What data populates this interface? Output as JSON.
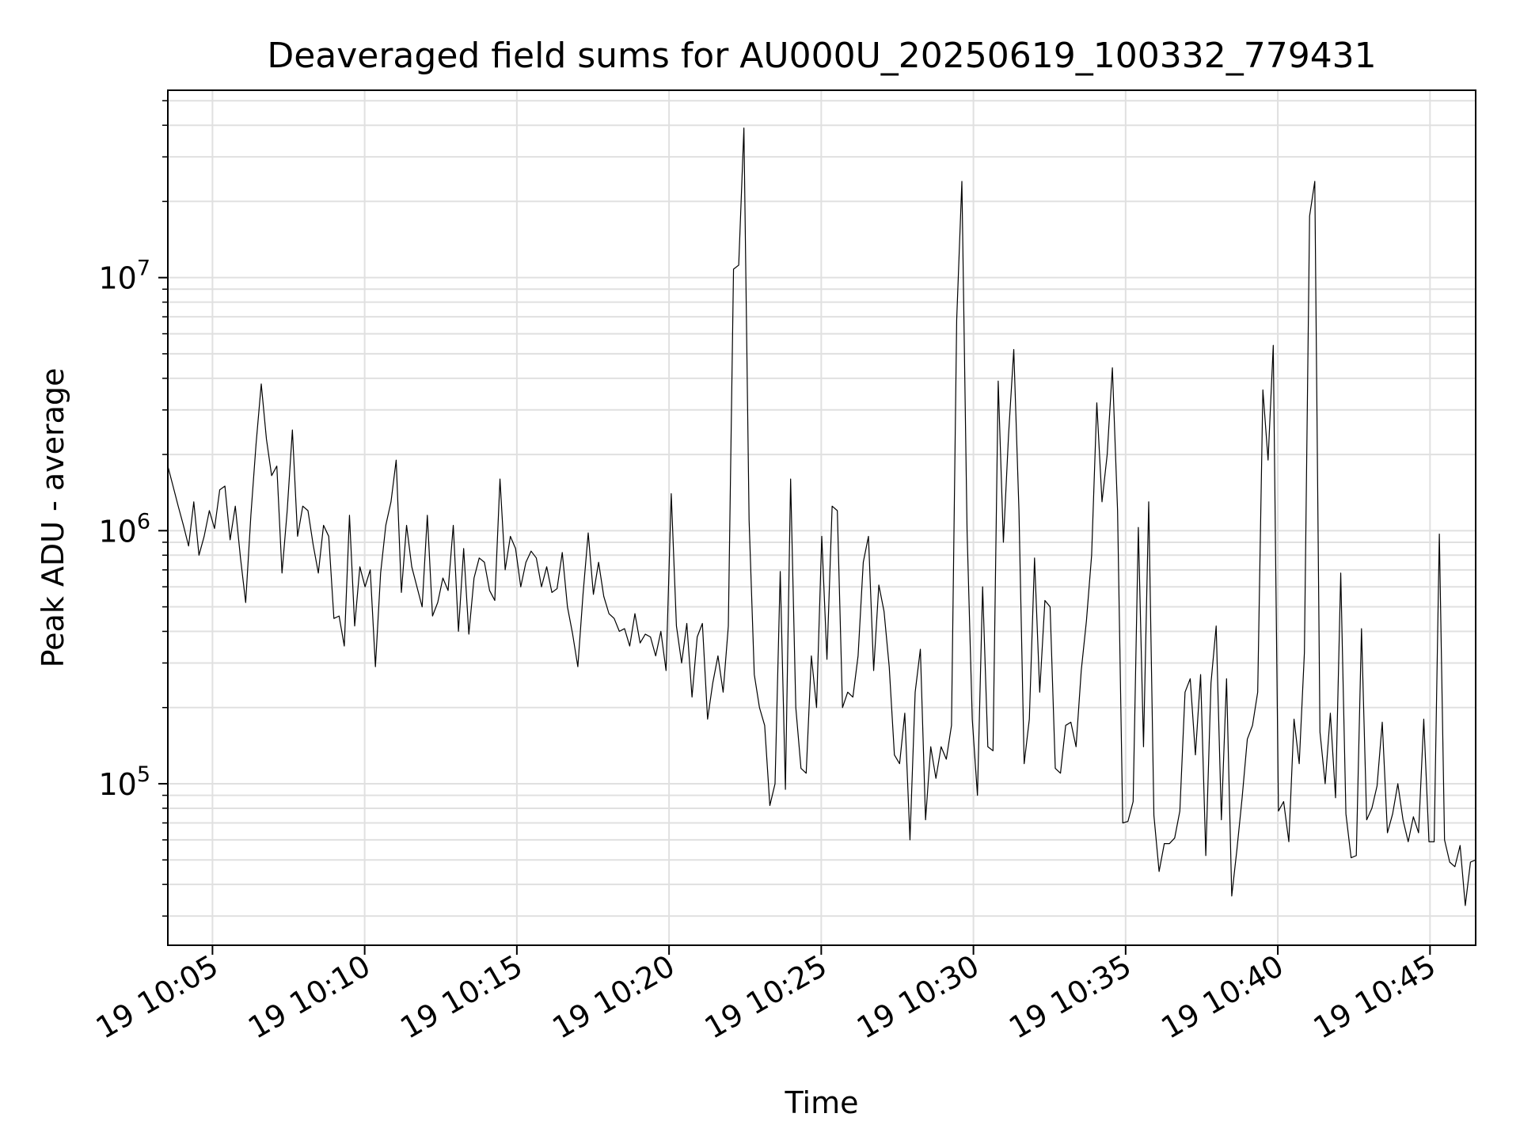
{
  "chart_data": {
    "type": "line",
    "title": "Deaveraged field sums for AU000U_20250619_100332_779431",
    "xlabel": "Time",
    "ylabel": "Peak ADU - average",
    "x_start": "10:03:32",
    "x_end": "10:46:30",
    "xlim": [
      "10:03:32",
      "10:46:30"
    ],
    "ylim": [
      23000,
      55000000
    ],
    "yscale": "log",
    "grid": true,
    "line_color": "#000000",
    "x_ticks": [
      {
        "t": "10:05:00",
        "label": "19 10:05"
      },
      {
        "t": "10:10:00",
        "label": "19 10:10"
      },
      {
        "t": "10:15:00",
        "label": "19 10:15"
      },
      {
        "t": "10:20:00",
        "label": "19 10:20"
      },
      {
        "t": "10:25:00",
        "label": "19 10:25"
      },
      {
        "t": "10:30:00",
        "label": "19 10:30"
      },
      {
        "t": "10:35:00",
        "label": "19 10:35"
      },
      {
        "t": "10:40:00",
        "label": "19 10:40"
      },
      {
        "t": "10:45:00",
        "label": "19 10:45"
      }
    ],
    "y_ticks": [
      {
        "value": 100000,
        "base": "10",
        "exp": "5"
      },
      {
        "value": 1000000,
        "base": "10",
        "exp": "6"
      },
      {
        "value": 10000000,
        "base": "10",
        "exp": "7"
      }
    ],
    "values": [
      1800000,
      1500000,
      1250000,
      1050000,
      870000,
      1300000,
      800000,
      950000,
      1200000,
      1020000,
      1450000,
      1500000,
      920000,
      1250000,
      780000,
      520000,
      1150000,
      2200000,
      3800000,
      2300000,
      1650000,
      1800000,
      680000,
      1200000,
      2500000,
      950000,
      1250000,
      1200000,
      880000,
      680000,
      1050000,
      950000,
      450000,
      460000,
      350000,
      1150000,
      420000,
      720000,
      600000,
      700000,
      290000,
      680000,
      1050000,
      1300000,
      1900000,
      570000,
      1050000,
      720000,
      600000,
      500000,
      1150000,
      460000,
      520000,
      650000,
      580000,
      1050000,
      400000,
      850000,
      390000,
      650000,
      780000,
      750000,
      580000,
      530000,
      1600000,
      700000,
      950000,
      850000,
      600000,
      750000,
      830000,
      780000,
      600000,
      720000,
      570000,
      590000,
      820000,
      500000,
      390000,
      290000,
      560000,
      980000,
      560000,
      750000,
      550000,
      470000,
      450000,
      400000,
      410000,
      350000,
      470000,
      360000,
      390000,
      380000,
      320000,
      400000,
      280000,
      1400000,
      420000,
      300000,
      430000,
      220000,
      380000,
      430000,
      180000,
      250000,
      320000,
      230000,
      420000,
      10800000,
      11200000,
      39000000,
      1100000,
      270000,
      200000,
      170000,
      82000,
      100000,
      690000,
      95000,
      1600000,
      200000,
      115000,
      110000,
      320000,
      200000,
      950000,
      310000,
      1250000,
      1200000,
      200000,
      230000,
      220000,
      320000,
      750000,
      950000,
      280000,
      610000,
      480000,
      290000,
      130000,
      120000,
      190000,
      60000,
      230000,
      340000,
      72000,
      140000,
      105000,
      140000,
      125000,
      170000,
      6800000,
      24000000,
      1000000,
      180000,
      90000,
      600000,
      140000,
      135000,
      3900000,
      900000,
      2400000,
      5200000,
      1200000,
      120000,
      180000,
      780000,
      230000,
      530000,
      500000,
      115000,
      110000,
      170000,
      175000,
      140000,
      280000,
      440000,
      800000,
      3200000,
      1300000,
      2000000,
      4400000,
      1200000,
      70000,
      71000,
      85000,
      1030000,
      140000,
      1300000,
      75000,
      45000,
      58000,
      58000,
      61000,
      78000,
      230000,
      260000,
      130000,
      270000,
      52000,
      250000,
      420000,
      72000,
      260000,
      36000,
      55000,
      88000,
      150000,
      170000,
      230000,
      3600000,
      1900000,
      5400000,
      78000,
      85000,
      59000,
      180000,
      120000,
      330000,
      17500000,
      24000000,
      160000,
      100000,
      190000,
      88000,
      680000,
      76000,
      51000,
      52000,
      410000,
      72000,
      80000,
      98000,
      175000,
      64000,
      76000,
      100000,
      72000,
      59000,
      74000,
      64000,
      180000,
      59000,
      59000,
      970000,
      60000,
      49000,
      47000,
      57000,
      33000,
      49000,
      50000
    ]
  }
}
